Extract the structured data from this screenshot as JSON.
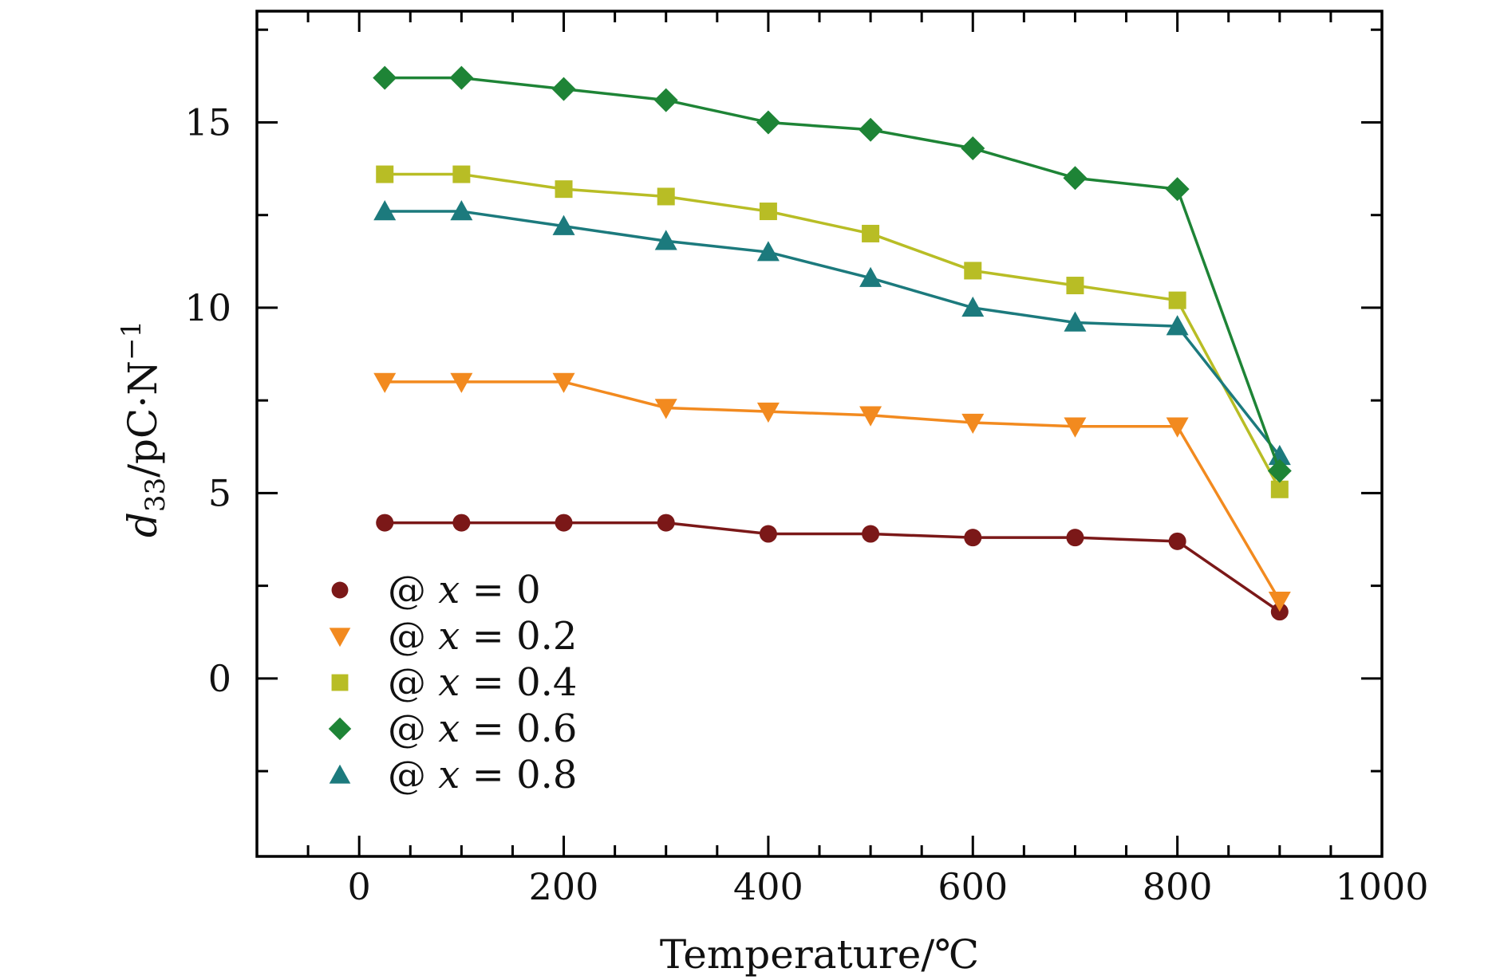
{
  "chart_data": {
    "type": "line",
    "xlabel": "Temperature/℃",
    "ylabel": {
      "var": "d",
      "sub": "33",
      "unit": "/pC·N",
      "sup": "−1"
    },
    "xlim": [
      -100,
      1000
    ],
    "ylim": [
      -4.8,
      18
    ],
    "x_ticks": [
      0,
      200,
      400,
      600,
      800,
      1000
    ],
    "y_ticks": [
      0,
      5,
      10,
      15
    ],
    "legend_position": "lower-left",
    "x": [
      25,
      100,
      200,
      300,
      400,
      500,
      600,
      700,
      800,
      900
    ],
    "series": [
      {
        "name": "@ x = 0",
        "legend_prefix": "@ ",
        "legend_var": "x",
        "legend_value": " = 0",
        "marker": "circle",
        "color": "#7b1818",
        "values": [
          4.2,
          4.2,
          4.2,
          4.2,
          3.9,
          3.9,
          3.8,
          3.8,
          3.7,
          1.8
        ]
      },
      {
        "name": "@ x = 0.2",
        "legend_prefix": "@ ",
        "legend_var": "x",
        "legend_value": " = 0.2",
        "marker": "triangle-down",
        "color": "#f28a1f",
        "values": [
          8.0,
          8.0,
          8.0,
          7.3,
          7.2,
          7.1,
          6.9,
          6.8,
          6.8,
          2.1
        ]
      },
      {
        "name": "@ x = 0.4",
        "legend_prefix": "@ ",
        "legend_var": "x",
        "legend_value": " = 0.4",
        "marker": "square",
        "color": "#b8bd25",
        "values": [
          13.6,
          13.6,
          13.2,
          13.0,
          12.6,
          12.0,
          11.0,
          10.6,
          10.2,
          5.1
        ]
      },
      {
        "name": "@ x = 0.6",
        "legend_prefix": "@ ",
        "legend_var": "x",
        "legend_value": " = 0.6",
        "marker": "diamond",
        "color": "#1e8436",
        "values": [
          16.2,
          16.2,
          15.9,
          15.6,
          15.0,
          14.8,
          14.3,
          13.5,
          13.2,
          5.6
        ]
      },
      {
        "name": "@ x = 0.8",
        "legend_prefix": "@ ",
        "legend_var": "x",
        "legend_value": " = 0.8",
        "marker": "triangle-up",
        "color": "#1c7a7d",
        "values": [
          12.6,
          12.6,
          12.2,
          11.8,
          11.5,
          10.8,
          10.0,
          9.6,
          9.5,
          6.0
        ]
      }
    ]
  }
}
